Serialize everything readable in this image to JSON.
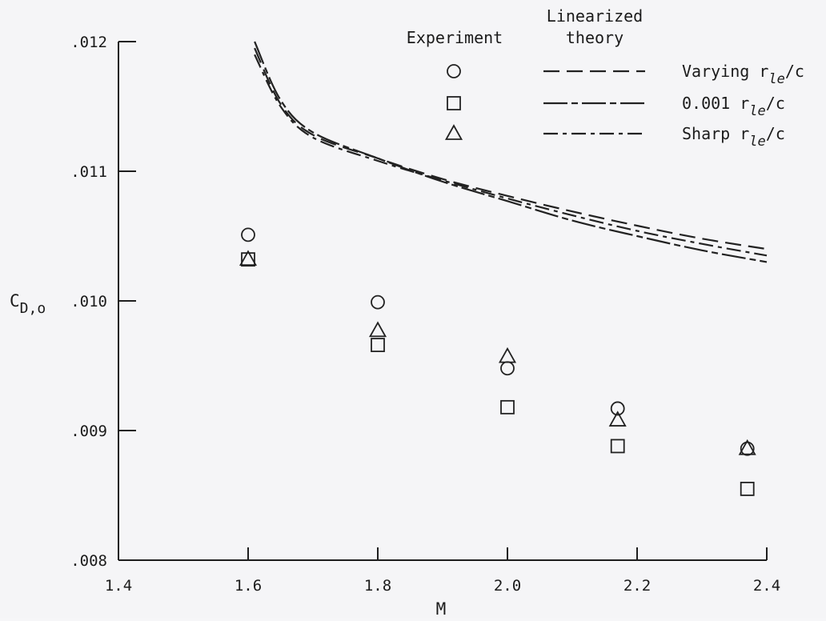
{
  "chart_data": {
    "type": "scatter",
    "xlabel": "M",
    "ylabel": {
      "main": "C",
      "sub": "D,o"
    },
    "xlim": [
      1.4,
      2.4
    ],
    "ylim": [
      0.008,
      0.012
    ],
    "x_ticks": [
      1.4,
      1.6,
      1.8,
      2.0,
      2.2,
      2.4
    ],
    "x_tick_labels": [
      "1.4",
      "1.6",
      "1.8",
      "2.0",
      "2.2",
      "2.4"
    ],
    "y_ticks": [
      0.008,
      0.009,
      0.01,
      0.011,
      0.012
    ],
    "y_tick_labels": [
      ".008",
      ".009",
      ".010",
      ".011",
      ".012"
    ],
    "grid": false,
    "legend": {
      "placement": "top-right",
      "experiment_header": "Experiment",
      "theory_header_line1": "Linearized",
      "theory_header_line2": "theory",
      "entries": [
        {
          "marker": "circle",
          "dash": "long-dash",
          "label_main": "Varying r",
          "label_sub": "le",
          "label_tail": "/c"
        },
        {
          "marker": "square",
          "dash": "long-short",
          "label_main": "0.001 r",
          "label_sub": "le",
          "label_tail": "/c"
        },
        {
          "marker": "triangle",
          "dash": "long-dash-dot",
          "label_main": "Sharp r",
          "label_sub": "le",
          "label_tail": "/c"
        }
      ]
    },
    "series": [
      {
        "name": "Varying r le/c",
        "kind": "experiment",
        "marker": "circle",
        "x": [
          1.6,
          1.8,
          2.0,
          2.17,
          2.37
        ],
        "y": [
          0.01051,
          0.00999,
          0.00948,
          0.00917,
          0.00886
        ]
      },
      {
        "name": "0.001 r le/c",
        "kind": "experiment",
        "marker": "square",
        "x": [
          1.6,
          1.8,
          2.0,
          2.17,
          2.37
        ],
        "y": [
          0.01032,
          0.00966,
          0.00918,
          0.00888,
          0.00855
        ]
      },
      {
        "name": "Sharp r le/c",
        "kind": "experiment",
        "marker": "triangle",
        "x": [
          1.6,
          1.8,
          2.0,
          2.17,
          2.37
        ],
        "y": [
          0.01032,
          0.00977,
          0.00957,
          0.00908,
          0.00886
        ]
      },
      {
        "name": "Varying r le/c",
        "kind": "theory",
        "dash": "long-dash",
        "x": [
          1.61,
          1.65,
          1.7,
          1.8,
          1.9,
          2.0,
          2.1,
          2.2,
          2.3,
          2.4
        ],
        "y": [
          0.01195,
          0.01152,
          0.01128,
          0.0111,
          0.01094,
          0.01081,
          0.01069,
          0.01058,
          0.01048,
          0.0104
        ]
      },
      {
        "name": "0.001 r le/c",
        "kind": "theory",
        "dash": "long-short",
        "x": [
          1.61,
          1.65,
          1.7,
          1.8,
          1.9,
          2.0,
          2.1,
          2.2,
          2.3,
          2.4
        ],
        "y": [
          0.012,
          0.01155,
          0.0113,
          0.0111,
          0.01092,
          0.01077,
          0.01062,
          0.0105,
          0.01039,
          0.0103
        ]
      },
      {
        "name": "Sharp r le/c",
        "kind": "theory",
        "dash": "long-dash-dot",
        "x": [
          1.61,
          1.65,
          1.7,
          1.8,
          1.9,
          2.0,
          2.1,
          2.2,
          2.3,
          2.4
        ],
        "y": [
          0.0119,
          0.0115,
          0.01126,
          0.01108,
          0.01093,
          0.01079,
          0.01066,
          0.01054,
          0.01044,
          0.01035
        ]
      }
    ]
  }
}
